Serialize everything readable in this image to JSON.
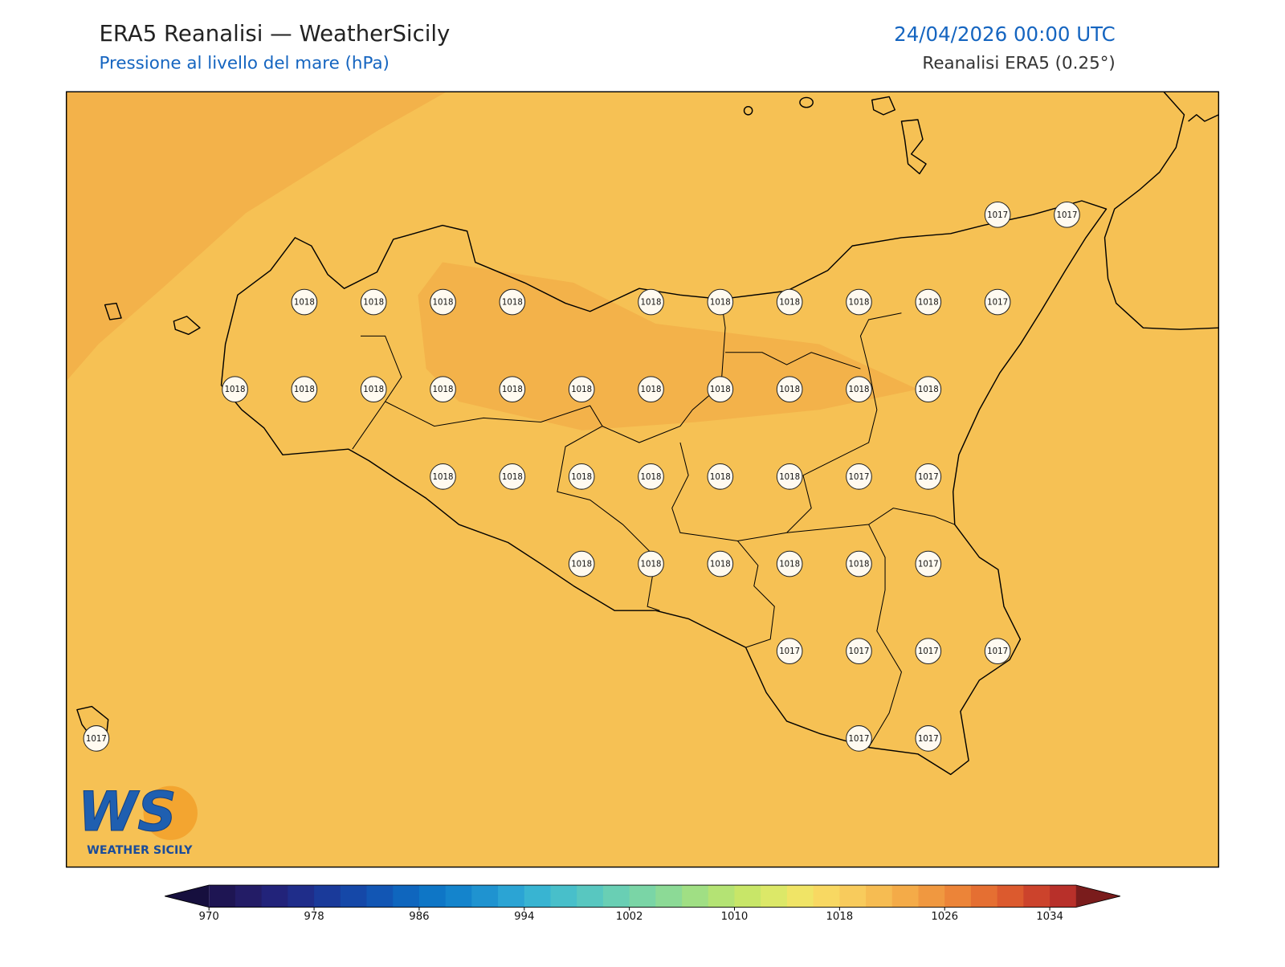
{
  "header": {
    "title": "ERA5 Reanalisi — WeatherSicily",
    "subtitle": "Pressione al livello del mare (hPa)",
    "datetime": "24/04/2026 00:00 UTC",
    "source": "Reanalisi ERA5 (0.25°)"
  },
  "map": {
    "pressure_labels": [
      1017,
      1017,
      1018,
      1018,
      1018,
      1018,
      1018,
      1018,
      1018,
      1018,
      1018,
      1017,
      1018,
      1018,
      1018,
      1018,
      1018,
      1018,
      1018,
      1018,
      1018,
      1018,
      1018,
      1018,
      1018,
      1018,
      1018,
      1018,
      1018,
      1017,
      1017,
      1018,
      1018,
      1018,
      1018,
      1018,
      1017,
      1017,
      1017,
      1017,
      1017,
      1017,
      1017,
      1017
    ]
  },
  "logo": {
    "mark": "WS",
    "name": "WEATHER SICILY"
  },
  "colorbar": {
    "lim": [
      970,
      1036
    ],
    "ticks": [
      970,
      978,
      986,
      994,
      1002,
      1010,
      1018,
      1026,
      1034
    ],
    "colors": [
      "#1e1553",
      "#231c66",
      "#22237a",
      "#1f2d8a",
      "#1a3a9a",
      "#1548a8",
      "#1256b4",
      "#0f66be",
      "#0e76c6",
      "#1484cc",
      "#1f93d0",
      "#2ba4d4",
      "#38b4d2",
      "#48bfca",
      "#58c7c0",
      "#69cfb4",
      "#7ad5a6",
      "#8cda96",
      "#a0df84",
      "#b4e374",
      "#c8e668",
      "#dce868",
      "#f0e466",
      "#f8d862",
      "#f8cb5c",
      "#f6bc52",
      "#f4ab48",
      "#f09840",
      "#ec8438",
      "#e56f32",
      "#dc5a2e",
      "#cc432c",
      "#b8302a"
    ],
    "under_color": "#160f3e",
    "over_color": "#7a1c1c"
  }
}
